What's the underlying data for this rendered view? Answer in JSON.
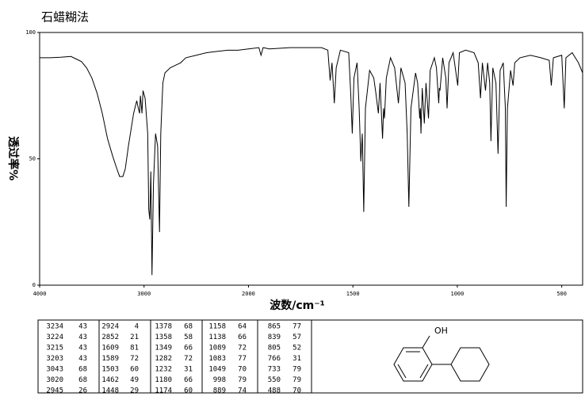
{
  "chart_data": {
    "type": "line",
    "title": "石蜡糊法",
    "x_label": "波数/cm⁻¹",
    "y_label": "透过率%",
    "xlim": [
      4000,
      400
    ],
    "xticks": [
      4000,
      3000,
      2000,
      1500,
      1000,
      500
    ],
    "xscale_change_at": 2000,
    "ylim": [
      0,
      100
    ],
    "yticks": [
      0,
      50,
      100
    ],
    "color": "#000000",
    "grid": false,
    "x": [
      4000,
      3900,
      3800,
      3700,
      3650,
      3600,
      3550,
      3500,
      3450,
      3400,
      3350,
      3300,
      3260,
      3234,
      3224,
      3215,
      3203,
      3180,
      3150,
      3100,
      3070,
      3060,
      3043,
      3035,
      3020,
      3010,
      2990,
      2965,
      2955,
      2945,
      2935,
      2924,
      2910,
      2890,
      2870,
      2852,
      2840,
      2820,
      2800,
      2750,
      2700,
      2650,
      2600,
      2500,
      2400,
      2300,
      2200,
      2100,
      2000,
      1950,
      1940,
      1930,
      1900,
      1800,
      1700,
      1650,
      1620,
      1609,
      1600,
      1589,
      1580,
      1560,
      1520,
      1510,
      1503,
      1495,
      1480,
      1470,
      1462,
      1455,
      1448,
      1440,
      1420,
      1400,
      1390,
      1378,
      1370,
      1358,
      1353,
      1349,
      1340,
      1320,
      1300,
      1282,
      1270,
      1250,
      1240,
      1232,
      1222,
      1200,
      1190,
      1180,
      1177,
      1174,
      1168,
      1158,
      1150,
      1138,
      1130,
      1110,
      1100,
      1089,
      1086,
      1083,
      1070,
      1055,
      1049,
      1040,
      1020,
      998,
      990,
      960,
      920,
      900,
      889,
      880,
      865,
      855,
      845,
      839,
      830,
      815,
      805,
      795,
      780,
      770,
      766,
      760,
      745,
      733,
      725,
      700,
      650,
      600,
      560,
      550,
      540,
      500,
      488,
      480,
      450,
      420,
      400
    ],
    "values": [
      90,
      90,
      90.2,
      90.5,
      89.5,
      88.5,
      86,
      82,
      76,
      68,
      58,
      51,
      46,
      43,
      43,
      43,
      43,
      46,
      55,
      68,
      73,
      71,
      68,
      75,
      68,
      77,
      74,
      60,
      30,
      26,
      45,
      4,
      40,
      60,
      55,
      21,
      60,
      80,
      84,
      86,
      87,
      88,
      90,
      91,
      92,
      92.5,
      93,
      93,
      93.5,
      94,
      91,
      94,
      93.5,
      94,
      94,
      94,
      93,
      81,
      88,
      72,
      86,
      93,
      92,
      75,
      60,
      82,
      88,
      70,
      49,
      60,
      29,
      70,
      85,
      82,
      76,
      68,
      80,
      58,
      70,
      66,
      82,
      90,
      86,
      72,
      86,
      80,
      60,
      31,
      70,
      84,
      80,
      66,
      70,
      60,
      78,
      64,
      80,
      66,
      85,
      90,
      86,
      72,
      78,
      77,
      90,
      82,
      70,
      88,
      92,
      79,
      92,
      93,
      92,
      88,
      74,
      88,
      77,
      88,
      80,
      57,
      86,
      80,
      52,
      85,
      88,
      70,
      31,
      70,
      85,
      79,
      88,
      90,
      91,
      90,
      89,
      79,
      90,
      91,
      70,
      90,
      92,
      88,
      84
    ]
  },
  "peak_table": [
    [
      [
        3234,
        43
      ],
      [
        3224,
        43
      ],
      [
        3215,
        43
      ],
      [
        3203,
        43
      ],
      [
        3043,
        68
      ],
      [
        3020,
        68
      ],
      [
        2945,
        26
      ]
    ],
    [
      [
        2924,
        4
      ],
      [
        2852,
        21
      ],
      [
        1609,
        81
      ],
      [
        1589,
        72
      ],
      [
        1503,
        60
      ],
      [
        1462,
        49
      ],
      [
        1448,
        29
      ]
    ],
    [
      [
        1378,
        68
      ],
      [
        1358,
        58
      ],
      [
        1349,
        66
      ],
      [
        1282,
        72
      ],
      [
        1232,
        31
      ],
      [
        1180,
        66
      ],
      [
        1174,
        60
      ]
    ],
    [
      [
        1158,
        64
      ],
      [
        1138,
        66
      ],
      [
        1089,
        72
      ],
      [
        1083,
        77
      ],
      [
        1049,
        70
      ],
      [
        998,
        79
      ],
      [
        889,
        74
      ]
    ],
    [
      [
        865,
        77
      ],
      [
        839,
        57
      ],
      [
        805,
        52
      ],
      [
        766,
        31
      ],
      [
        733,
        79
      ],
      [
        550,
        79
      ],
      [
        488,
        70
      ]
    ]
  ],
  "structure": {
    "label": "OH"
  }
}
